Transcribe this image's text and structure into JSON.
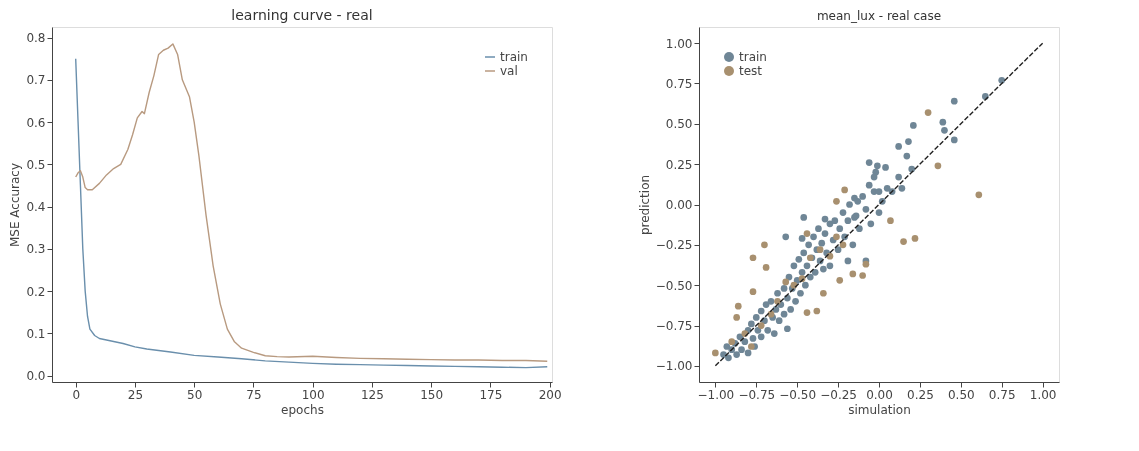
{
  "chart_data": [
    {
      "type": "line",
      "title": "learning curve - real",
      "xlabel": "epochs",
      "ylabel": "MSE Accuracy",
      "legend": "top right",
      "grid": false,
      "xlim": [
        -10,
        201
      ],
      "ylim": [
        -0.015,
        0.825
      ],
      "xticks": [
        0,
        25,
        50,
        75,
        100,
        125,
        150,
        175,
        200
      ],
      "yticks": [
        {
          "value": 0,
          "label": "0.0"
        },
        {
          "value": 0.1,
          "label": "0.1"
        },
        {
          "value": 0.2,
          "label": "0.2"
        },
        {
          "value": 0.3,
          "label": "0.3"
        },
        {
          "value": 0.4,
          "label": "0.4"
        },
        {
          "value": 0.5,
          "label": "0.5"
        },
        {
          "value": 0.6,
          "label": "0.6"
        },
        {
          "value": 0.7,
          "label": "0.7"
        },
        {
          "value": 0.8,
          "label": "0.8"
        }
      ],
      "series": [
        {
          "name": "train",
          "color": "#6a8fac",
          "x": [
            0,
            1,
            2,
            3,
            4,
            5,
            6,
            8,
            10,
            15,
            20,
            25,
            30,
            40,
            50,
            60,
            70,
            80,
            90,
            100,
            110,
            120,
            130,
            140,
            150,
            160,
            170,
            180,
            190,
            199
          ],
          "values": [
            0.75,
            0.6,
            0.45,
            0.3,
            0.2,
            0.14,
            0.11,
            0.095,
            0.088,
            0.082,
            0.076,
            0.068,
            0.063,
            0.056,
            0.048,
            0.044,
            0.04,
            0.035,
            0.032,
            0.029,
            0.027,
            0.026,
            0.025,
            0.024,
            0.023,
            0.022,
            0.021,
            0.02,
            0.019,
            0.021
          ]
        },
        {
          "name": "val",
          "color": "#b89a80",
          "x": [
            0,
            1,
            2,
            3,
            4,
            5,
            7,
            10,
            13,
            16,
            19,
            22,
            24,
            26,
            28,
            29,
            31,
            33,
            35,
            37,
            39,
            41,
            43,
            45,
            48,
            50,
            52,
            55,
            58,
            61,
            64,
            67,
            70,
            75,
            80,
            85,
            90,
            100,
            110,
            120,
            130,
            140,
            150,
            160,
            170,
            180,
            190,
            199
          ],
          "values": [
            0.47,
            0.48,
            0.485,
            0.47,
            0.445,
            0.44,
            0.44,
            0.455,
            0.475,
            0.49,
            0.5,
            0.535,
            0.57,
            0.61,
            0.625,
            0.62,
            0.67,
            0.71,
            0.76,
            0.77,
            0.775,
            0.785,
            0.76,
            0.7,
            0.66,
            0.6,
            0.52,
            0.38,
            0.26,
            0.17,
            0.11,
            0.08,
            0.065,
            0.055,
            0.047,
            0.045,
            0.044,
            0.046,
            0.043,
            0.041,
            0.04,
            0.039,
            0.038,
            0.037,
            0.037,
            0.036,
            0.036,
            0.034
          ]
        }
      ]
    },
    {
      "type": "scatter",
      "title": "mean_lux - real case",
      "xlabel": "simulation",
      "ylabel": "prediction",
      "legend": "top left",
      "grid": false,
      "marker": "circle",
      "xlim": [
        -1.1,
        1.1
      ],
      "ylim": [
        -1.1,
        1.1
      ],
      "xticks": [
        {
          "value": -1,
          "label": "−1.00"
        },
        {
          "value": -0.75,
          "label": "−0.75"
        },
        {
          "value": -0.5,
          "label": "−0.50"
        },
        {
          "value": -0.25,
          "label": "−0.25"
        },
        {
          "value": 0,
          "label": "0.00"
        },
        {
          "value": 0.25,
          "label": "0.25"
        },
        {
          "value": 0.5,
          "label": "0.50"
        },
        {
          "value": 0.75,
          "label": "0.75"
        },
        {
          "value": 1,
          "label": "1.00"
        }
      ],
      "yticks": [
        {
          "value": -1,
          "label": "−1.00"
        },
        {
          "value": -0.75,
          "label": "−0.75"
        },
        {
          "value": -0.5,
          "label": "−0.50"
        },
        {
          "value": -0.25,
          "label": "−0.25"
        },
        {
          "value": 0,
          "label": "0.00"
        },
        {
          "value": 0.25,
          "label": "0.25"
        },
        {
          "value": 0.5,
          "label": "0.50"
        },
        {
          "value": 0.75,
          "label": "0.75"
        },
        {
          "value": 1,
          "label": "1.00"
        }
      ],
      "series": [
        {
          "name": "train",
          "color": "#6f8696",
          "x": [
            -0.95,
            -0.93,
            -0.92,
            -0.9,
            -0.88,
            -0.87,
            -0.85,
            -0.84,
            -0.82,
            -0.8,
            -0.8,
            -0.78,
            -0.77,
            -0.76,
            -0.75,
            -0.74,
            -0.72,
            -0.72,
            -0.7,
            -0.69,
            -0.68,
            -0.66,
            -0.65,
            -0.64,
            -0.63,
            -0.62,
            -0.61,
            -0.6,
            -0.58,
            -0.58,
            -0.56,
            -0.55,
            -0.54,
            -0.53,
            -0.52,
            -0.51,
            -0.5,
            -0.49,
            -0.48,
            -0.47,
            -0.46,
            -0.45,
            -0.44,
            -0.43,
            -0.42,
            -0.41,
            -0.4,
            -0.39,
            -0.38,
            -0.37,
            -0.36,
            -0.35,
            -0.34,
            -0.33,
            -0.32,
            -0.3,
            -0.3,
            -0.28,
            -0.27,
            -0.25,
            -0.24,
            -0.22,
            -0.21,
            -0.19,
            -0.18,
            -0.16,
            -0.15,
            -0.13,
            -0.12,
            -0.1,
            -0.08,
            -0.06,
            -0.05,
            -0.03,
            -0.02,
            0.02,
            0.05,
            0.08,
            0.46,
            0.65,
            0.75,
            0.39,
            0.4,
            0.46,
            0.21,
            0.12,
            0.18,
            0.17,
            0.2,
            0.12,
            0.14,
            0.04,
            -0.01,
            -0.06,
            -0.03,
            0,
            0,
            -0.15,
            -0.14,
            -0.08,
            -0.19,
            -0.46,
            -0.57,
            -0.47,
            -0.33,
            -0.56
          ],
          "values": [
            -0.93,
            -0.88,
            -0.95,
            -0.9,
            -0.86,
            -0.93,
            -0.82,
            -0.9,
            -0.85,
            -0.78,
            -0.92,
            -0.74,
            -0.83,
            -0.88,
            -0.7,
            -0.78,
            -0.66,
            -0.82,
            -0.72,
            -0.62,
            -0.78,
            -0.6,
            -0.7,
            -0.8,
            -0.65,
            -0.55,
            -0.72,
            -0.62,
            -0.52,
            -0.68,
            -0.58,
            -0.45,
            -0.65,
            -0.52,
            -0.38,
            -0.6,
            -0.47,
            -0.34,
            -0.55,
            -0.42,
            -0.3,
            -0.5,
            -0.38,
            -0.25,
            -0.45,
            -0.33,
            -0.2,
            -0.42,
            -0.28,
            -0.15,
            -0.35,
            -0.24,
            -0.4,
            -0.18,
            -0.3,
            -0.12,
            -0.38,
            -0.22,
            -0.1,
            -0.28,
            -0.15,
            -0.05,
            -0.2,
            -0.1,
            0,
            -0.25,
            -0.08,
            0.02,
            -0.15,
            0.05,
            -0.03,
            0.12,
            -0.12,
            0.08,
            0.2,
            0.02,
            0.1,
            0.08,
            0.64,
            0.67,
            0.77,
            0.51,
            0.46,
            0.4,
            0.49,
            0.36,
            0.39,
            0.3,
            0.22,
            0.17,
            0.1,
            0.23,
            0.24,
            0.26,
            0.17,
            0.08,
            -0.05,
            0.04,
            -0.07,
            -0.35,
            -0.35,
            -0.08,
            -0.2,
            -0.21,
            -0.09,
            -0.77
          ]
        },
        {
          "name": "test",
          "color": "#a8906f",
          "x": [
            0.3,
            0.36,
            0.61,
            0.07,
            0.15,
            0.22,
            -0.21,
            -0.26,
            -0.7,
            -0.77,
            -0.69,
            -0.16,
            -0.1,
            -0.08,
            -0.24,
            -0.44,
            -0.38,
            -0.34,
            -1,
            -0.86,
            -0.87,
            -0.77,
            -0.44,
            -0.9,
            -0.82,
            -0.78,
            -0.72,
            -0.66,
            -0.62,
            -0.57,
            -0.52,
            -0.47,
            -0.42,
            -0.36,
            -0.3,
            -0.26,
            -0.22
          ],
          "values": [
            0.57,
            0.24,
            0.06,
            -0.1,
            -0.23,
            -0.21,
            0.09,
            0.02,
            -0.25,
            -0.33,
            -0.39,
            -0.43,
            -0.44,
            -0.37,
            -0.47,
            -0.67,
            -0.66,
            -0.55,
            -0.92,
            -0.63,
            -0.7,
            -0.54,
            -0.18,
            -0.85,
            -0.8,
            -0.88,
            -0.75,
            -0.68,
            -0.6,
            -0.48,
            -0.5,
            -0.46,
            -0.33,
            -0.28,
            -0.32,
            -0.2,
            -0.25
          ]
        },
        {
          "type": "line",
          "color": "#222222",
          "line_style": "dashed",
          "marker": "none",
          "x": [
            -1,
            1
          ],
          "values": [
            -1,
            1
          ]
        }
      ]
    }
  ]
}
